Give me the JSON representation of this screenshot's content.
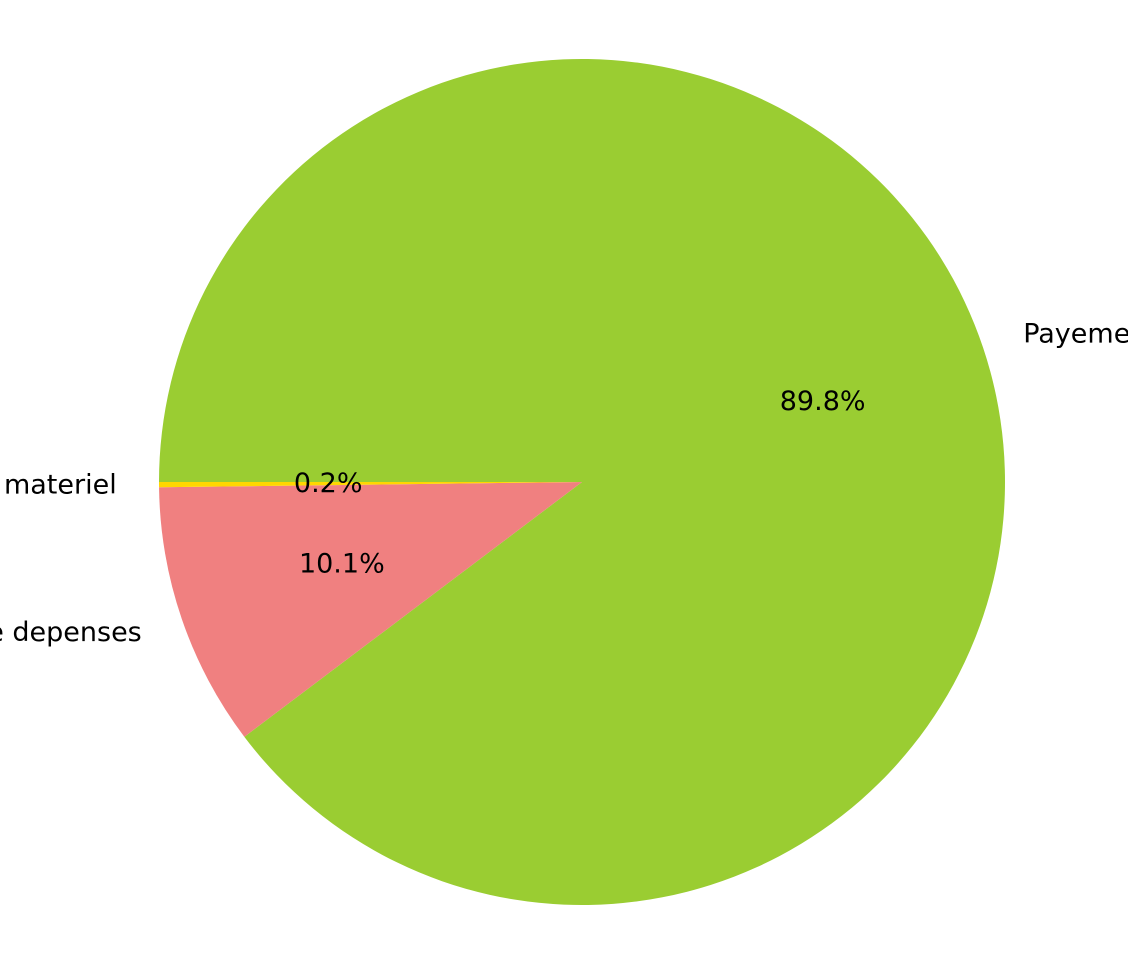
{
  "chart_data": {
    "type": "pie",
    "title": "",
    "start_angle_deg": 180,
    "direction": "clockwise",
    "slices": [
      {
        "label": "Payement employer",
        "value": 89.8,
        "pct_label": "89.8%",
        "color": "#9ACD32"
      },
      {
        "label": "Autre depenses",
        "value": 10.1,
        "pct_label": "10.1%",
        "color": "#F08080"
      },
      {
        "label": "Vente materiel",
        "value": 0.2,
        "pct_label": "0.2%",
        "color": "#FFD700"
      }
    ]
  }
}
